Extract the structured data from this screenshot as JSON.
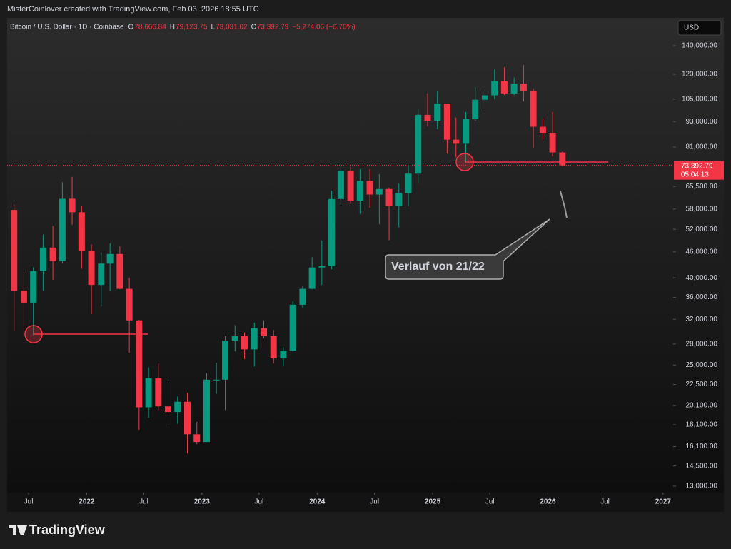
{
  "chart_data": {
    "type": "candlestick",
    "header_line": "MisterCoinlover created with TradingView.com, Feb 03, 2026 18:55 UTC",
    "symbol": "Bitcoin / U.S. Dollar · 1D · Coinbase",
    "ohlc_legend": [
      {
        "key": "O",
        "value": "78,666.84"
      },
      {
        "key": "H",
        "value": "79,123.75"
      },
      {
        "key": "L",
        "value": "73,031.02"
      },
      {
        "key": "C",
        "value": "73,392.79"
      }
    ],
    "change": "−5,274.06 (−6.70%)",
    "currency": "USD",
    "last_price": {
      "value": 73392.79,
      "label": "73,392.79"
    },
    "countdown": "05:04:13",
    "annotation": "Verlauf von 21/22",
    "brand": "TradingView",
    "up_color": "#089981",
    "down_color": "#f23645",
    "log_scale": true,
    "grid": false,
    "x": [
      "2021-05",
      "2021-06",
      "2021-07",
      "2021-08",
      "2021-09",
      "2021-10",
      "2021-11",
      "2021-12",
      "2022-01",
      "2022-02",
      "2022-03",
      "2022-04",
      "2022-05",
      "2022-06",
      "2022-07",
      "2022-08",
      "2022-09",
      "2022-10",
      "2022-11",
      "2022-12",
      "2023-01",
      "2023-02",
      "2023-03",
      "2023-04",
      "2023-05",
      "2023-06",
      "2023-07",
      "2023-08",
      "2023-09",
      "2023-10",
      "2023-11",
      "2023-12",
      "2024-01",
      "2024-02",
      "2024-03",
      "2024-04",
      "2024-05",
      "2024-06",
      "2024-07",
      "2024-08",
      "2024-09",
      "2024-10",
      "2024-11",
      "2024-12",
      "2025-01",
      "2025-02",
      "2025-03",
      "2025-04",
      "2025-05",
      "2025-06",
      "2025-07",
      "2025-08",
      "2025-09",
      "2025-10",
      "2025-11",
      "2025-12",
      "2026-01",
      "2026-02"
    ],
    "open": [
      57700,
      37300,
      35000,
      41500,
      47100,
      43800,
      61300,
      57000,
      46200,
      38500,
      43200,
      45500,
      37700,
      31800,
      19900,
      23300,
      20000,
      19400,
      20500,
      17200,
      16500,
      23100,
      23100,
      28500,
      29200,
      27200,
      30500,
      29200,
      25900,
      27000,
      34600,
      37700,
      42300,
      42600,
      61200,
      71300,
      60700,
      67500,
      62700,
      64600,
      58900,
      63300,
      70200,
      96400,
      93400,
      102400,
      84300,
      82500,
      94200,
      104600,
      107100,
      115700,
      108200,
      114000,
      109500,
      90400,
      87500,
      78700
    ],
    "high": [
      59500,
      41300,
      42300,
      50500,
      52900,
      67000,
      69000,
      59100,
      47900,
      45800,
      48200,
      47400,
      40000,
      31900,
      24700,
      25200,
      22800,
      21100,
      21500,
      18400,
      23900,
      25300,
      29200,
      31000,
      29800,
      31400,
      31800,
      30200,
      27500,
      35200,
      38400,
      44700,
      48900,
      64000,
      73800,
      72800,
      71900,
      71900,
      70000,
      65100,
      66500,
      73600,
      99800,
      108300,
      109300,
      102500,
      95000,
      97900,
      112000,
      110600,
      123200,
      124500,
      117900,
      126200,
      111200,
      94600,
      97900,
      79100
    ],
    "low": [
      30000,
      28800,
      29300,
      37300,
      39600,
      43300,
      53300,
      42000,
      32900,
      34300,
      37200,
      37600,
      26700,
      17600,
      18800,
      19600,
      18100,
      18200,
      15500,
      16300,
      16500,
      21400,
      19600,
      26900,
      25800,
      24800,
      28900,
      25200,
      24900,
      26900,
      34100,
      37600,
      38500,
      41900,
      59300,
      59600,
      56500,
      58400,
      53500,
      49000,
      52500,
      58900,
      66800,
      90500,
      89200,
      78200,
      76600,
      74400,
      93400,
      98200,
      105100,
      107300,
      107200,
      103500,
      80500,
      84400,
      77000,
      73000
    ],
    "close": [
      37300,
      35000,
      41500,
      47100,
      43800,
      61300,
      57000,
      46200,
      38500,
      43200,
      45500,
      37700,
      31800,
      19900,
      23300,
      20000,
      19400,
      20500,
      17200,
      16500,
      23100,
      23100,
      28500,
      29200,
      27200,
      30500,
      29200,
      25900,
      27000,
      34600,
      37700,
      42300,
      42600,
      61200,
      71300,
      60700,
      67500,
      62700,
      64600,
      58900,
      63300,
      70200,
      96400,
      93400,
      102400,
      84300,
      82500,
      94200,
      104600,
      107100,
      115700,
      108200,
      114000,
      109500,
      90400,
      87500,
      78700,
      73400
    ],
    "xlim": [
      "2021-04-24",
      "2027-02-02"
    ],
    "xticks": [
      {
        "value": "2021-07",
        "label": "Jul"
      },
      2022,
      {
        "value": "2022-07",
        "label": "Jul"
      },
      2023,
      {
        "value": "2023-07",
        "label": "Jul"
      },
      2024,
      {
        "value": "2024-07",
        "label": "Jul"
      },
      2025,
      {
        "value": "2025-07",
        "label": "Jul"
      },
      2026,
      {
        "value": "2026-07",
        "label": "Jul"
      },
      2027
    ],
    "ylim": [
      12557,
      162700
    ],
    "yticks": [
      {
        "value": 13000,
        "label": "13,000.00"
      },
      {
        "value": 14500,
        "label": "14,500.00"
      },
      {
        "value": 16100,
        "label": "16,100.00"
      },
      {
        "value": 18100,
        "label": "18,100.00"
      },
      {
        "value": 20100,
        "label": "20,100.00"
      },
      {
        "value": 22500,
        "label": "22,500.00"
      },
      {
        "value": 25000,
        "label": "25,000.00"
      },
      {
        "value": 28000,
        "label": "28,000.00"
      },
      {
        "value": 32000,
        "label": "32,000.00"
      },
      {
        "value": 36000,
        "label": "36,000.00"
      },
      {
        "value": 40000,
        "label": "40,000.00"
      },
      {
        "value": 46000,
        "label": "46,000.00"
      },
      {
        "value": 52000,
        "label": "52,000.00"
      },
      {
        "value": 58000,
        "label": "58,000.00"
      },
      {
        "value": 65500,
        "label": "65,500.00"
      },
      {
        "value": 81000,
        "label": "81,000.00"
      },
      {
        "value": 93000,
        "label": "93,000.00"
      },
      {
        "value": 105000,
        "label": "105,000.00"
      },
      {
        "value": 120000,
        "label": "120,000.00"
      },
      {
        "value": 140000,
        "label": "140,000.00"
      }
    ]
  }
}
